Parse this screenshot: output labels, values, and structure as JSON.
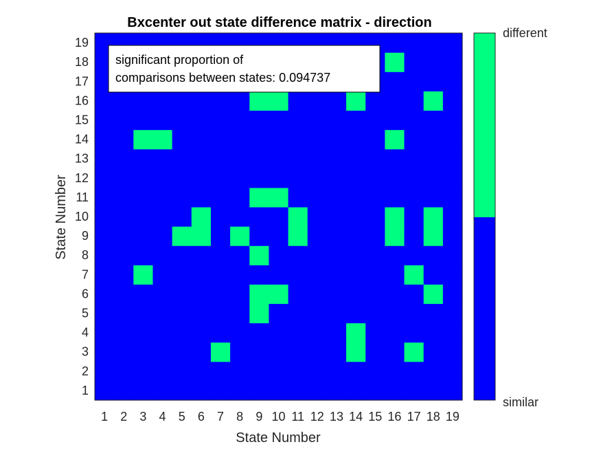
{
  "chart_data": {
    "type": "heatmap",
    "title": "Bxcenter out state difference matrix - direction",
    "xlabel": "State Number",
    "ylabel": "State Number",
    "x": [
      1,
      2,
      3,
      4,
      5,
      6,
      7,
      8,
      9,
      10,
      11,
      12,
      13,
      14,
      15,
      16,
      17,
      18,
      19
    ],
    "y": [
      1,
      2,
      3,
      4,
      5,
      6,
      7,
      8,
      9,
      10,
      11,
      12,
      13,
      14,
      15,
      16,
      17,
      18,
      19
    ],
    "xlim": [
      0.5,
      19.5
    ],
    "ylim": [
      0.5,
      19.5
    ],
    "values_legend": {
      "0": "similar",
      "1": "different"
    },
    "different_cells": [
      [
        16,
        18
      ],
      [
        9,
        16
      ],
      [
        10,
        16
      ],
      [
        14,
        16
      ],
      [
        18,
        16
      ],
      [
        3,
        14
      ],
      [
        4,
        14
      ],
      [
        16,
        14
      ],
      [
        9,
        11
      ],
      [
        10,
        11
      ],
      [
        6,
        10
      ],
      [
        11,
        10
      ],
      [
        16,
        10
      ],
      [
        18,
        10
      ],
      [
        5,
        9
      ],
      [
        6,
        9
      ],
      [
        8,
        9
      ],
      [
        11,
        9
      ],
      [
        16,
        9
      ],
      [
        18,
        9
      ],
      [
        9,
        8
      ],
      [
        3,
        7
      ],
      [
        17,
        7
      ],
      [
        9,
        6
      ],
      [
        10,
        6
      ],
      [
        18,
        6
      ],
      [
        9,
        5
      ],
      [
        14,
        4
      ],
      [
        7,
        3
      ],
      [
        14,
        3
      ],
      [
        17,
        3
      ]
    ],
    "colorbar": {
      "ticks": [
        "similar",
        "different"
      ]
    },
    "annotation": {
      "line1": "significant proportion of",
      "line2": "comparisons between states: 0.094737"
    },
    "colors": {
      "similar": "#0000ff",
      "different": "#00ff80"
    }
  }
}
